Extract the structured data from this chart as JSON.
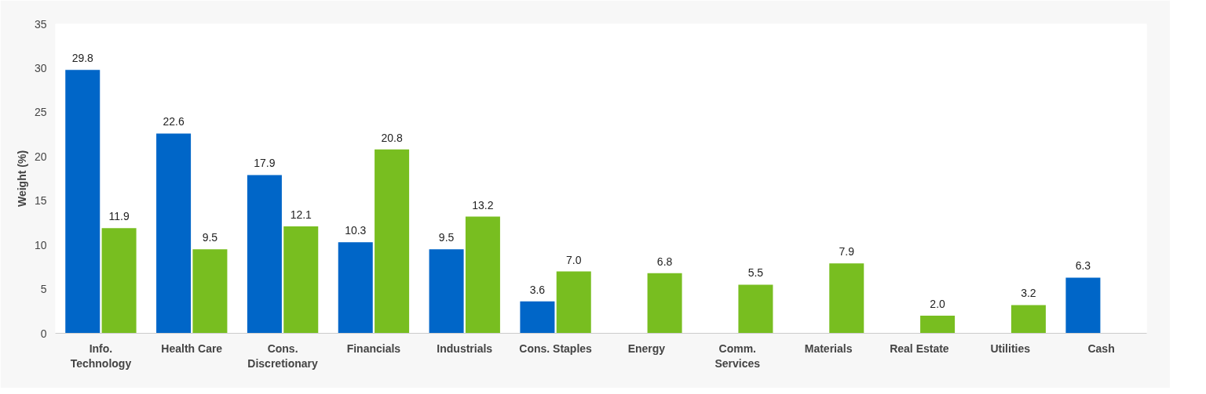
{
  "chart_data": {
    "type": "bar",
    "ylabel": "Weight (%)",
    "categories": [
      "Info. Technology",
      "Health Care",
      "Cons. Discretionary",
      "Financials",
      "Industrials",
      "Cons. Staples",
      "Energy",
      "Comm. Services",
      "Materials",
      "Real Estate",
      "Utilities",
      "Cash"
    ],
    "series": [
      {
        "color": "#0066c8",
        "values": [
          29.8,
          22.6,
          17.9,
          10.3,
          9.5,
          3.6,
          null,
          null,
          null,
          null,
          null,
          6.3
        ],
        "value_labels": [
          "29.8",
          "22.6",
          "17.9",
          "10.3",
          "9.5",
          "3.6",
          null,
          null,
          null,
          null,
          null,
          "6.3"
        ]
      },
      {
        "color": "#78be20",
        "values": [
          11.9,
          9.5,
          12.1,
          20.8,
          13.2,
          7.0,
          6.8,
          5.5,
          7.9,
          2.0,
          3.2,
          null
        ],
        "value_labels": [
          "11.9",
          "9.5",
          "12.1",
          "20.8",
          "13.2",
          "7.0",
          "6.8",
          "5.5",
          "7.9",
          "2.0",
          "3.2",
          null
        ]
      }
    ],
    "ylim": [
      0,
      35
    ],
    "yticks": [
      0,
      5,
      10,
      15,
      20,
      25,
      30,
      35
    ],
    "grid": false
  }
}
